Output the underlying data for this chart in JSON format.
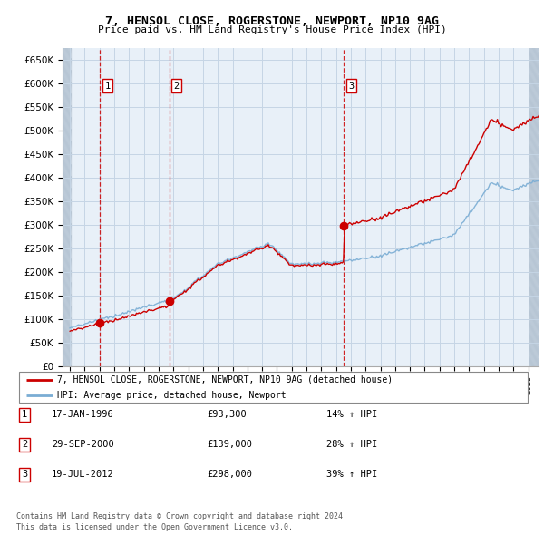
{
  "title": "7, HENSOL CLOSE, ROGERSTONE, NEWPORT, NP10 9AG",
  "subtitle": "Price paid vs. HM Land Registry's House Price Index (HPI)",
  "legend_label1": "7, HENSOL CLOSE, ROGERSTONE, NEWPORT, NP10 9AG (detached house)",
  "legend_label2": "HPI: Average price, detached house, Newport",
  "ylim": [
    0,
    670000
  ],
  "yticks": [
    0,
    50000,
    100000,
    150000,
    200000,
    250000,
    300000,
    350000,
    400000,
    450000,
    500000,
    550000,
    600000,
    650000
  ],
  "footer1": "Contains HM Land Registry data © Crown copyright and database right 2024.",
  "footer2": "This data is licensed under the Open Government Licence v3.0.",
  "price_paid": [
    {
      "date": "1996-01-17",
      "price": 93300,
      "label": "1"
    },
    {
      "date": "2000-09-29",
      "price": 139000,
      "label": "2"
    },
    {
      "date": "2012-07-19",
      "price": 298000,
      "label": "3"
    }
  ],
  "table_rows": [
    {
      "num": "1",
      "date": "17-JAN-1996",
      "price": "£93,300",
      "change": "14% ↑ HPI"
    },
    {
      "num": "2",
      "date": "29-SEP-2000",
      "price": "£139,000",
      "change": "28% ↑ HPI"
    },
    {
      "num": "3",
      "date": "19-JUL-2012",
      "price": "£298,000",
      "change": "39% ↑ HPI"
    }
  ],
  "hpi_color": "#7aadd4",
  "price_color": "#cc0000",
  "marker_box_color": "#cc0000",
  "grid_color": "#c8d8e8",
  "vline_color": "#cc0000",
  "bg_color": "#dce8f0",
  "plot_bg": "#e8f0f8"
}
